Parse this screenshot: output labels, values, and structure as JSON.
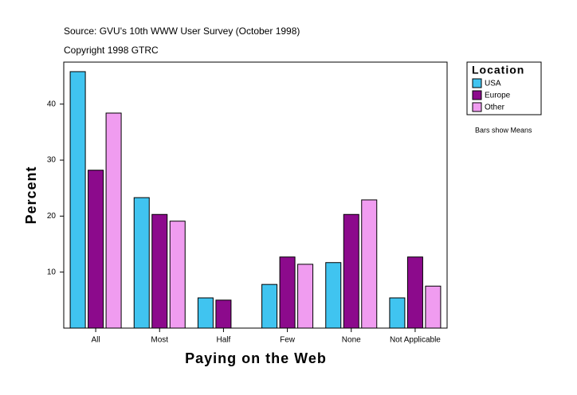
{
  "chart_data": {
    "type": "bar",
    "title": "Source: GVU's 10th WWW User Survey (October 1998)",
    "subtitle": "Copyright 1998 GTRC",
    "x_label": "Paying on the Web",
    "y_label": "Percent",
    "note": "Bars show Means",
    "legend_title": "Location",
    "legend_position": "right",
    "categories": [
      "All",
      "Most",
      "Half",
      "Few",
      "None",
      "Not Applicable"
    ],
    "series": [
      {
        "name": "USA",
        "color": "#40c4f0",
        "values": [
          45.8,
          23.3,
          5.4,
          7.8,
          11.7,
          5.4
        ]
      },
      {
        "name": "Europe",
        "color": "#8c0a8c",
        "values": [
          28.2,
          20.3,
          5.0,
          12.7,
          20.3,
          12.7
        ]
      },
      {
        "name": "Other",
        "color": "#f09cf0",
        "values": [
          38.4,
          19.1,
          null,
          11.4,
          22.9,
          7.5
        ]
      }
    ],
    "ylim": [
      0,
      47.5
    ],
    "yticks": [
      10,
      20,
      30,
      40
    ],
    "grid": false
  }
}
